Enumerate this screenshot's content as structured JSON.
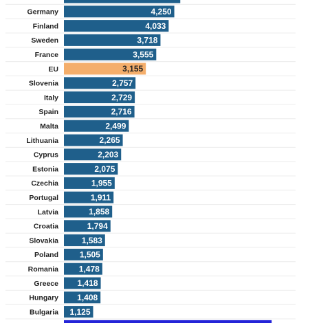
{
  "chart_data": {
    "type": "barh",
    "categories": [
      null,
      "Germany",
      "Finland",
      "Sweden",
      "France",
      "EU",
      "Slovenia",
      "Italy",
      "Spain",
      "Malta",
      "Lithuania",
      "Cyprus",
      "Estonia",
      "Czechia",
      "Portugal",
      "Latvia",
      "Croatia",
      "Slovakia",
      "Poland",
      "Romania",
      "Greece",
      "Hungary",
      "Bulgaria",
      null
    ],
    "values": [
      4480,
      4250,
      4033,
      3718,
      3555,
      3155,
      2757,
      2729,
      2716,
      2499,
      2265,
      2203,
      2075,
      1955,
      1911,
      1858,
      1794,
      1583,
      1505,
      1478,
      1418,
      1408,
      1125,
      8000
    ],
    "value_labels": [
      null,
      "4,250",
      "4,033",
      "3,718",
      "3,555",
      "3,155",
      "2,757",
      "2,729",
      "2,716",
      "2,499",
      "2,265",
      "2,203",
      "2,075",
      "1,955",
      "1,911",
      "1,858",
      "1,794",
      "1,583",
      "1,505",
      "1,478",
      "1,418",
      "1,408",
      "1,125",
      null
    ],
    "colors": [
      "#1f5f8b",
      "#1f5f8b",
      "#1f5f8b",
      "#1f5f8b",
      "#1f5f8b",
      "#f4ae6b",
      "#1f5f8b",
      "#1f5f8b",
      "#1f5f8b",
      "#1f5f8b",
      "#1f5f8b",
      "#1f5f8b",
      "#1f5f8b",
      "#1f5f8b",
      "#1f5f8b",
      "#1f5f8b",
      "#1f5f8b",
      "#1f5f8b",
      "#1f5f8b",
      "#1f5f8b",
      "#1f5f8b",
      "#1f5f8b",
      "#1f5f8b",
      "#2424d8"
    ],
    "xlim": [
      0,
      9900
    ]
  }
}
